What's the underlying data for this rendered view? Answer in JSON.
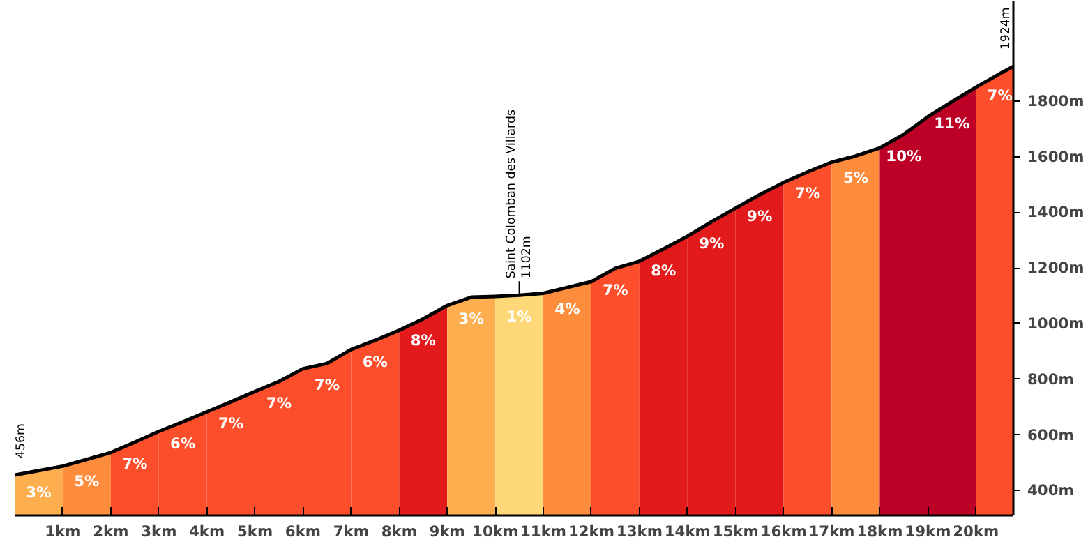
{
  "chart_data": {
    "type": "area",
    "xlim": [
      0,
      20.78
    ],
    "ylim": [
      311,
      2160
    ],
    "xticks": [
      {
        "value": 1,
        "label": "1km"
      },
      {
        "value": 2,
        "label": "2km"
      },
      {
        "value": 3,
        "label": "3km"
      },
      {
        "value": 4,
        "label": "4km"
      },
      {
        "value": 5,
        "label": "5km"
      },
      {
        "value": 6,
        "label": "6km"
      },
      {
        "value": 7,
        "label": "7km"
      },
      {
        "value": 8,
        "label": "8km"
      },
      {
        "value": 9,
        "label": "9km"
      },
      {
        "value": 10,
        "label": "10km"
      },
      {
        "value": 11,
        "label": "11km"
      },
      {
        "value": 12,
        "label": "12km"
      },
      {
        "value": 13,
        "label": "13km"
      },
      {
        "value": 14,
        "label": "14km"
      },
      {
        "value": 15,
        "label": "15km"
      },
      {
        "value": 16,
        "label": "16km"
      },
      {
        "value": 17,
        "label": "17km"
      },
      {
        "value": 18,
        "label": "18km"
      },
      {
        "value": 19,
        "label": "19km"
      },
      {
        "value": 20,
        "label": "20km"
      }
    ],
    "yticks": [
      {
        "value": 400,
        "label": "400m"
      },
      {
        "value": 600,
        "label": "600m"
      },
      {
        "value": 800,
        "label": "800m"
      },
      {
        "value": 1000,
        "label": "1000m"
      },
      {
        "value": 1200,
        "label": "1200m"
      },
      {
        "value": 1400,
        "label": "1400m"
      },
      {
        "value": 1600,
        "label": "1600m"
      },
      {
        "value": 1800,
        "label": "1800m"
      }
    ],
    "grid": false,
    "series": [
      {
        "color": "#fdae4e",
        "x": [
          0,
          0.5,
          1
        ],
        "values": [
          456,
          472,
          488
        ]
      },
      {
        "color": "#fd8d3c",
        "x": [
          1,
          1.5,
          2
        ],
        "values": [
          488,
          512,
          537
        ]
      },
      {
        "color": "#fc4e2a",
        "x": [
          2,
          2.5,
          3
        ],
        "values": [
          537,
          574,
          613
        ]
      },
      {
        "color": "#fc4e2a",
        "x": [
          3,
          3.5,
          4
        ],
        "values": [
          613,
          647,
          683
        ]
      },
      {
        "color": "#fc4e2a",
        "x": [
          4,
          4.5,
          5
        ],
        "values": [
          683,
          719,
          756
        ]
      },
      {
        "color": "#fc4e2a",
        "x": [
          5,
          5.5,
          6
        ],
        "values": [
          756,
          792,
          838
        ]
      },
      {
        "color": "#fc4e2a",
        "x": [
          6,
          6.5,
          7
        ],
        "values": [
          838,
          857,
          907
        ]
      },
      {
        "color": "#fc4e2a",
        "x": [
          7,
          7.5,
          8
        ],
        "values": [
          907,
          940,
          976
        ]
      },
      {
        "color": "#e31a1c",
        "x": [
          8,
          8.5,
          9
        ],
        "values": [
          976,
          1017,
          1065
        ]
      },
      {
        "color": "#fdae4e",
        "x": [
          9,
          9.5,
          10
        ],
        "values": [
          1065,
          1095,
          1098
        ]
      },
      {
        "color": "#fed777",
        "x": [
          10,
          10.5,
          11
        ],
        "values": [
          1098,
          1102,
          1109
        ]
      },
      {
        "color": "#fd8d3c",
        "x": [
          11,
          11.5,
          12
        ],
        "values": [
          1109,
          1130,
          1151
        ]
      },
      {
        "color": "#fc4e2a",
        "x": [
          12,
          12.5,
          13
        ],
        "values": [
          1151,
          1199,
          1224
        ]
      },
      {
        "color": "#e31a1c",
        "x": [
          13,
          13.5,
          14
        ],
        "values": [
          1224,
          1268,
          1314
        ]
      },
      {
        "color": "#e31a1c",
        "x": [
          14,
          14.5,
          15
        ],
        "values": [
          1314,
          1366,
          1415
        ]
      },
      {
        "color": "#e31a1c",
        "x": [
          15,
          15.5,
          16
        ],
        "values": [
          1415,
          1463,
          1507
        ]
      },
      {
        "color": "#fc4e2a",
        "x": [
          16,
          16.5,
          17
        ],
        "values": [
          1507,
          1545,
          1580
        ]
      },
      {
        "color": "#fd8d3c",
        "x": [
          17,
          17.5,
          18
        ],
        "values": [
          1580,
          1602,
          1631
        ]
      },
      {
        "color": "#bd0026",
        "x": [
          18,
          18.5,
          19
        ],
        "values": [
          1631,
          1680,
          1743
        ]
      },
      {
        "color": "#bd0026",
        "x": [
          19,
          19.5,
          20
        ],
        "values": [
          1743,
          1797,
          1849
        ]
      },
      {
        "color": "#fc4e2a",
        "x": [
          20,
          20.5,
          20.78
        ],
        "values": [
          1849,
          1898,
          1924
        ]
      },
      {
        "type": "line",
        "color": "#000000",
        "x": [
          0,
          0.5,
          1,
          1.5,
          2,
          2.5,
          3,
          3.5,
          4,
          4.5,
          5,
          5.5,
          6,
          6.5,
          7,
          7.5,
          8,
          8.5,
          9,
          9.5,
          10,
          10.5,
          11,
          11.5,
          12,
          12.5,
          13,
          13.5,
          14,
          14.5,
          15,
          15.5,
          16,
          16.5,
          17,
          17.5,
          18,
          18.5,
          19,
          19.5,
          20,
          20.5,
          20.78
        ],
        "values": [
          456,
          472,
          488,
          512,
          537,
          574,
          613,
          647,
          683,
          719,
          756,
          792,
          838,
          857,
          907,
          940,
          976,
          1017,
          1065,
          1095,
          1098,
          1102,
          1109,
          1130,
          1151,
          1199,
          1224,
          1268,
          1314,
          1366,
          1415,
          1463,
          1507,
          1545,
          1580,
          1602,
          1631,
          1680,
          1743,
          1797,
          1849,
          1898,
          1924
        ]
      }
    ],
    "annotations": [
      {
        "text": "456m",
        "x": 0,
        "y": 456
      },
      {
        "text": "Saint Colomban des Villards\n1102m",
        "x": 10.5,
        "y": 1102
      },
      {
        "text": "1924m",
        "x": 20.78,
        "y": 1924
      },
      "3%",
      "5%",
      "7%",
      "6%",
      "7%",
      "7%",
      "7%",
      "6%",
      "8%",
      "3%",
      "1%",
      "4%",
      "7%",
      "8%",
      "9%",
      "9%",
      "7%",
      "5%",
      "10%",
      "11%",
      "7%"
    ]
  }
}
